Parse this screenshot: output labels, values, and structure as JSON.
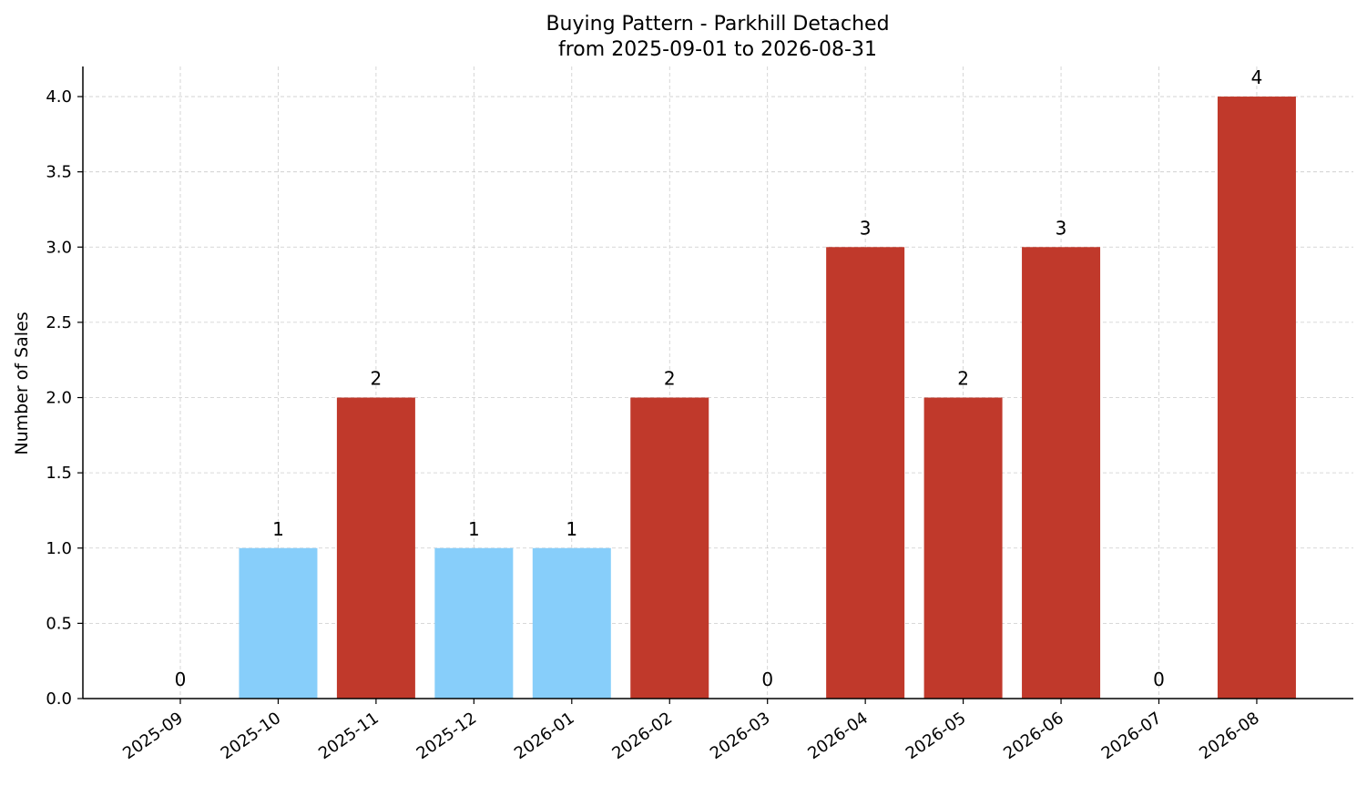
{
  "chart_data": {
    "type": "bar",
    "title": "Buying Pattern - Parkhill Detached",
    "subtitle": "from 2025-09-01 to 2026-08-31",
    "xlabel": "",
    "ylabel": "Number of Sales",
    "categories": [
      "2025-09",
      "2025-10",
      "2025-11",
      "2025-12",
      "2026-01",
      "2026-02",
      "2026-03",
      "2026-04",
      "2026-05",
      "2026-06",
      "2026-07",
      "2026-08"
    ],
    "values": [
      0,
      1,
      2,
      1,
      1,
      2,
      0,
      3,
      2,
      3,
      0,
      4
    ],
    "data_labels": [
      "0",
      "1",
      "2",
      "1",
      "1",
      "2",
      "0",
      "3",
      "2",
      "3",
      "0",
      "4"
    ],
    "bar_colors": [
      "#c0392b",
      "#87cefa",
      "#c0392b",
      "#87cefa",
      "#87cefa",
      "#c0392b",
      "#c0392b",
      "#c0392b",
      "#c0392b",
      "#c0392b",
      "#c0392b",
      "#c0392b"
    ],
    "ylim": [
      0,
      4.2
    ],
    "yticks": [
      "0.0",
      "0.5",
      "1.0",
      "1.5",
      "2.0",
      "2.5",
      "3.0",
      "3.5",
      "4.0"
    ],
    "grid": true,
    "legend": "none"
  }
}
